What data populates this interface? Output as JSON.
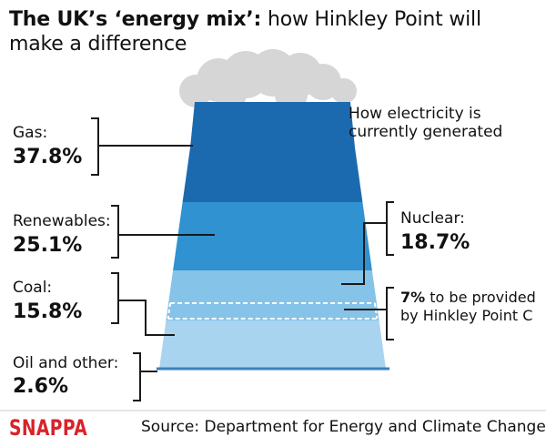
{
  "title": {
    "bold": "The UK’s ‘energy mix’:",
    "rest": " how Hinkley Point will make a difference"
  },
  "subtitle": "How electricity is currently generated",
  "colors": {
    "gas": "#1b6ab0",
    "renewables": "#3092d0",
    "coal": "#86c3e8",
    "oil": "#a8d4f0",
    "smoke": "#d6d6d6",
    "outline": "#1a1a1a",
    "brand": "#d8232a"
  },
  "chart_data": {
    "type": "stacked-column",
    "title": "How electricity is currently generated",
    "unit": "%",
    "series": [
      {
        "name": "Gas",
        "label": "Gas:",
        "value": 37.8,
        "display": "37.8%"
      },
      {
        "name": "Renewables",
        "label": "Renewables:",
        "value": 25.1,
        "display": "25.1%"
      },
      {
        "name": "Nuclear",
        "label": "Nuclear:",
        "value": 18.7,
        "display": "18.7%"
      },
      {
        "name": "Coal",
        "label": "Coal:",
        "value": 15.8,
        "display": "15.8%"
      },
      {
        "name": "Oil and other",
        "label": "Oil and other:",
        "value": 2.6,
        "display": "2.6%"
      }
    ],
    "annotation": {
      "value": "7%",
      "text": " to be provided by Hinkley Point C"
    }
  },
  "brand": "SNAPPA",
  "source": "Source: Department for Energy and Climate Change"
}
